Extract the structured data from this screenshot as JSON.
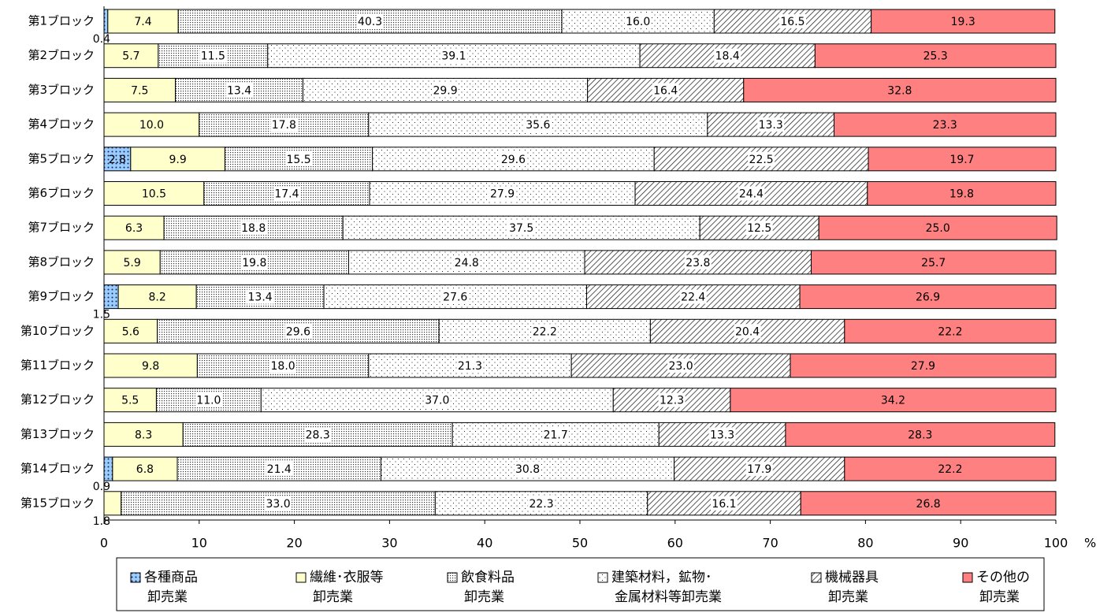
{
  "chart_data": {
    "type": "stacked-bar-horizontal",
    "categories": [
      "第1ブロック",
      "第2ブロック",
      "第3ブロック",
      "第4ブロック",
      "第5ブロック",
      "第6ブロック",
      "第7ブロック",
      "第8ブロック",
      "第9ブロック",
      "第10ブロック",
      "第11ブロック",
      "第12ブロック",
      "第13ブロック",
      "第14ブロック",
      "第15ブロック"
    ],
    "series": [
      {
        "name": "各種商品\n卸売業",
        "color": "#99ccff",
        "values": [
          0.4,
          null,
          null,
          null,
          2.8,
          null,
          null,
          null,
          1.5,
          null,
          null,
          null,
          null,
          0.9,
          null
        ],
        "value_labels": [
          "0.4",
          null,
          null,
          null,
          "2.8",
          null,
          null,
          null,
          "1.5",
          null,
          null,
          null,
          null,
          "0.9",
          null
        ]
      },
      {
        "name": "繊維･衣服等\n卸売業",
        "color": "#ffffcc",
        "values": [
          7.4,
          5.7,
          7.5,
          10.0,
          9.9,
          10.5,
          6.3,
          5.9,
          8.2,
          5.6,
          9.8,
          5.5,
          8.3,
          6.8,
          1.8
        ],
        "value_labels": [
          "7.4",
          "5.7",
          "7.5",
          "10.0",
          "9.9",
          "10.5",
          "6.3",
          "5.9",
          "8.2",
          "5.6",
          "9.8",
          "5.5",
          "8.3",
          "6.8",
          "1.8"
        ]
      },
      {
        "name": "飲食料品\n卸売業",
        "color": "#ffffff",
        "values": [
          40.3,
          11.5,
          13.4,
          17.8,
          15.5,
          17.4,
          18.8,
          19.8,
          13.4,
          29.6,
          18.0,
          11.0,
          28.3,
          21.4,
          33.0
        ],
        "value_labels": [
          "40.3",
          "11.5",
          "13.4",
          "17.8",
          "15.5",
          "17.4",
          "18.8",
          "19.8",
          "13.4",
          "29.6",
          "18.0",
          "11.0",
          "28.3",
          "21.4",
          "33.0"
        ]
      },
      {
        "name": "建築材料，鉱物･\n金属材料等卸売業",
        "color": "#ffffff",
        "values": [
          16.0,
          39.1,
          29.9,
          35.6,
          29.6,
          27.9,
          37.5,
          24.8,
          27.6,
          22.2,
          21.3,
          37.0,
          21.7,
          30.8,
          22.3
        ],
        "value_labels": [
          "16.0",
          "39.1",
          "29.9",
          "35.6",
          "29.6",
          "27.9",
          "37.5",
          "24.8",
          "27.6",
          "22.2",
          "21.3",
          "37.0",
          "21.7",
          "30.8",
          "22.3"
        ]
      },
      {
        "name": "機械器具\n卸売業",
        "color": "#ffffff",
        "values": [
          16.5,
          18.4,
          16.4,
          13.3,
          22.5,
          24.4,
          12.5,
          23.8,
          22.4,
          20.4,
          23.0,
          12.3,
          13.3,
          17.9,
          16.1
        ],
        "value_labels": [
          "16.5",
          "18.4",
          "16.4",
          "13.3",
          "22.5",
          "24.4",
          "12.5",
          "23.8",
          "22.4",
          "20.4",
          "23.0",
          "12.3",
          "13.3",
          "17.9",
          "16.1"
        ]
      },
      {
        "name": "その他の\n卸売業",
        "color": "#ff8080",
        "values": [
          19.3,
          25.3,
          32.8,
          23.3,
          19.7,
          19.8,
          25.0,
          25.7,
          26.9,
          22.2,
          27.9,
          34.2,
          28.3,
          22.2,
          26.8
        ],
        "value_labels": [
          "19.3",
          "25.3",
          "32.8",
          "23.3",
          "19.7",
          "19.8",
          "25.0",
          "25.7",
          "26.9",
          "22.2",
          "27.9",
          "34.2",
          "28.3",
          "22.2",
          "26.8"
        ]
      }
    ],
    "xlim": [
      0,
      100
    ],
    "xticks": [
      0,
      10,
      20,
      30,
      40,
      50,
      60,
      70,
      80,
      90,
      100
    ],
    "xlabel": "%"
  }
}
